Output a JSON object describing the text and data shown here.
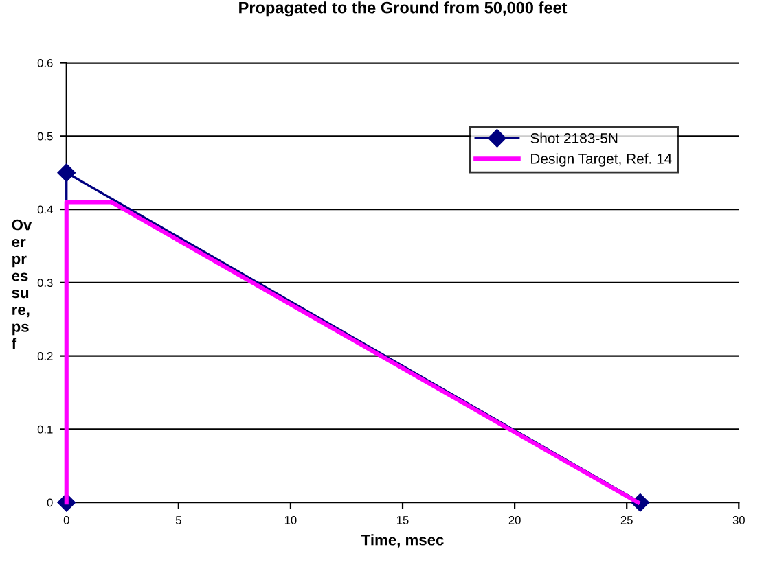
{
  "chart_data": {
    "type": "line",
    "title": "Propagated to the Ground from 50,000 feet",
    "xlabel": "Time, msec",
    "ylabel": "Overpressure, psf",
    "xlim": [
      0,
      30
    ],
    "xticks": [
      0,
      5,
      10,
      15,
      20,
      25,
      30
    ],
    "ylim": [
      0,
      0.6
    ],
    "yticks": [
      0,
      0.1,
      0.2,
      0.3,
      0.4,
      0.5,
      0.6
    ],
    "grid": "y",
    "legend": "top right",
    "series": [
      {
        "name": "Shot 2183-5N",
        "color": "#000080",
        "x": [
          0,
          0,
          25.6
        ],
        "values": [
          0,
          0.45,
          0
        ],
        "marker": "diamond"
      },
      {
        "name": "Design Target, Ref. 14",
        "color": "#ff00ff",
        "x": [
          0,
          0,
          2,
          25.5
        ],
        "values": [
          0,
          0.41,
          0.41,
          0
        ],
        "marker": "none"
      }
    ]
  }
}
